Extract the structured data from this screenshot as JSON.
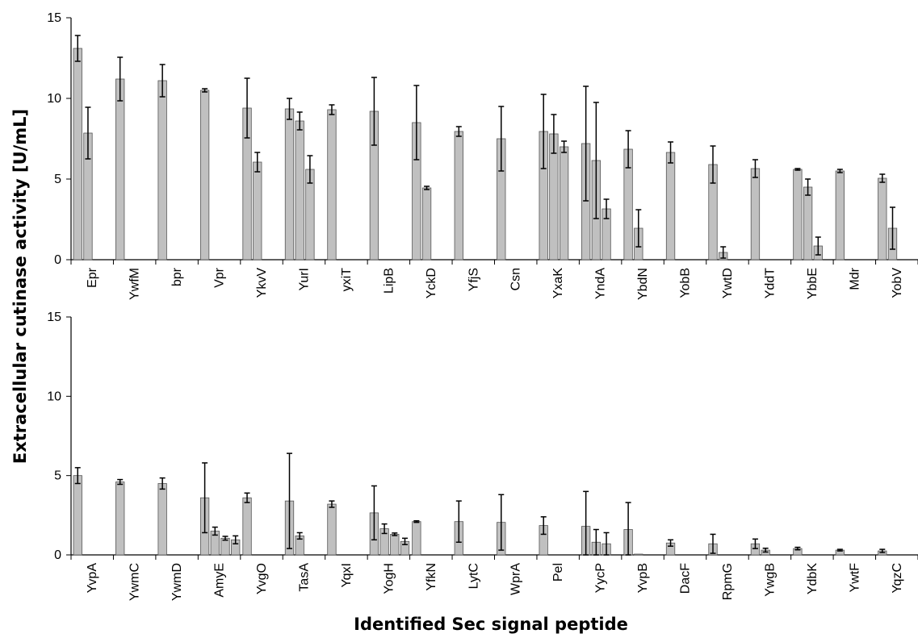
{
  "chart_data": {
    "type": "bar",
    "ylabel": "Extracellular cutinase activity   [U/mL]",
    "xlabel": "Identified Sec signal peptide",
    "bar_color": "#c0c0c0",
    "bar_edge_color": "#555555",
    "grid": false,
    "error_bars": true,
    "panels": [
      {
        "name": "top",
        "ylim": [
          0,
          15
        ],
        "yticks": [
          "0",
          "5",
          "10",
          "15"
        ],
        "ytick_values": [
          0,
          5,
          10,
          15
        ],
        "groups": [
          {
            "label": "Epr",
            "bars": [
              {
                "value": 13.1,
                "error": 0.8
              },
              {
                "value": 7.85,
                "error": 1.6
              }
            ]
          },
          {
            "label": "YwfM",
            "bars": [
              {
                "value": 11.2,
                "error": 1.35
              }
            ]
          },
          {
            "label": "bpr",
            "bars": [
              {
                "value": 11.1,
                "error": 1.0
              }
            ]
          },
          {
            "label": "Vpr",
            "bars": [
              {
                "value": 10.5,
                "error": 0.1
              }
            ]
          },
          {
            "label": "YkvV",
            "bars": [
              {
                "value": 9.4,
                "error": 1.85
              },
              {
                "value": 6.05,
                "error": 0.6
              }
            ]
          },
          {
            "label": "YurI",
            "bars": [
              {
                "value": 9.35,
                "error": 0.65
              },
              {
                "value": 8.6,
                "error": 0.55
              },
              {
                "value": 5.6,
                "error": 0.85
              }
            ]
          },
          {
            "label": "yxiT",
            "bars": [
              {
                "value": 9.3,
                "error": 0.3
              }
            ]
          },
          {
            "label": "LipB",
            "bars": [
              {
                "value": 9.2,
                "error": 2.1
              }
            ]
          },
          {
            "label": "YckD",
            "bars": [
              {
                "value": 8.5,
                "error": 2.3
              },
              {
                "value": 4.45,
                "error": 0.1
              }
            ]
          },
          {
            "label": "YfjS",
            "bars": [
              {
                "value": 7.95,
                "error": 0.3
              }
            ]
          },
          {
            "label": "Csn",
            "bars": [
              {
                "value": 7.5,
                "error": 2.0
              }
            ]
          },
          {
            "label": "YxaK",
            "bars": [
              {
                "value": 7.95,
                "error": 2.3
              },
              {
                "value": 7.8,
                "error": 1.2
              },
              {
                "value": 7.0,
                "error": 0.35
              }
            ]
          },
          {
            "label": "YndA",
            "bars": [
              {
                "value": 7.2,
                "error": 3.55
              },
              {
                "value": 6.15,
                "error": 3.6
              },
              {
                "value": 3.15,
                "error": 0.6
              }
            ]
          },
          {
            "label": "YbdN",
            "bars": [
              {
                "value": 6.85,
                "error": 1.15
              },
              {
                "value": 1.95,
                "error": 1.15
              }
            ]
          },
          {
            "label": "YobB",
            "bars": [
              {
                "value": 6.65,
                "error": 0.65
              }
            ]
          },
          {
            "label": "YwtD",
            "bars": [
              {
                "value": 5.9,
                "error": 1.15
              },
              {
                "value": 0.45,
                "error": 0.35
              }
            ]
          },
          {
            "label": "YddT",
            "bars": [
              {
                "value": 5.65,
                "error": 0.55
              }
            ]
          },
          {
            "label": "YbbE",
            "bars": [
              {
                "value": 5.6,
                "error": 0.05
              },
              {
                "value": 4.5,
                "error": 0.5
              },
              {
                "value": 0.85,
                "error": 0.55
              }
            ]
          },
          {
            "label": "Mdr",
            "bars": [
              {
                "value": 5.5,
                "error": 0.1
              }
            ]
          },
          {
            "label": "YobV",
            "bars": [
              {
                "value": 5.05,
                "error": 0.25
              },
              {
                "value": 1.95,
                "error": 1.3
              }
            ]
          }
        ]
      },
      {
        "name": "bottom",
        "ylim": [
          0,
          15
        ],
        "yticks": [
          "0",
          "5",
          "10",
          "15"
        ],
        "ytick_values": [
          0,
          5,
          10,
          15
        ],
        "groups": [
          {
            "label": "YvpA",
            "bars": [
              {
                "value": 5.0,
                "error": 0.5
              }
            ]
          },
          {
            "label": "YwmC",
            "bars": [
              {
                "value": 4.6,
                "error": 0.15
              }
            ]
          },
          {
            "label": "YwmD",
            "bars": [
              {
                "value": 4.5,
                "error": 0.35
              }
            ]
          },
          {
            "label": "AmyE",
            "bars": [
              {
                "value": 3.6,
                "error": 2.2
              },
              {
                "value": 1.5,
                "error": 0.25
              },
              {
                "value": 1.05,
                "error": 0.12
              },
              {
                "value": 0.95,
                "error": 0.25
              }
            ]
          },
          {
            "label": "YvgO",
            "bars": [
              {
                "value": 3.6,
                "error": 0.3
              }
            ]
          },
          {
            "label": "TasA",
            "bars": [
              {
                "value": 3.4,
                "error": 3.0
              },
              {
                "value": 1.2,
                "error": 0.2
              }
            ]
          },
          {
            "label": "YqxI",
            "bars": [
              {
                "value": 3.2,
                "error": 0.2
              }
            ]
          },
          {
            "label": "YogH",
            "bars": [
              {
                "value": 2.65,
                "error": 1.7
              },
              {
                "value": 1.65,
                "error": 0.3
              },
              {
                "value": 1.3,
                "error": 0.08
              },
              {
                "value": 0.85,
                "error": 0.2
              }
            ]
          },
          {
            "label": "YfkN",
            "bars": [
              {
                "value": 2.1,
                "error": 0.05
              }
            ]
          },
          {
            "label": "LytC",
            "bars": [
              {
                "value": 2.1,
                "error": 1.3
              }
            ]
          },
          {
            "label": "WprA",
            "bars": [
              {
                "value": 2.05,
                "error": 1.75
              }
            ]
          },
          {
            "label": "Pel",
            "bars": [
              {
                "value": 1.85,
                "error": 0.55
              }
            ]
          },
          {
            "label": "YycP",
            "bars": [
              {
                "value": 1.8,
                "error": 2.2
              },
              {
                "value": 0.8,
                "error": 0.8
              },
              {
                "value": 0.7,
                "error": 0.7
              }
            ]
          },
          {
            "label": "YvpB",
            "bars": [
              {
                "value": 1.6,
                "error": 1.7
              },
              {
                "value": 0.05,
                "error": 0.0
              }
            ]
          },
          {
            "label": "DacF",
            "bars": [
              {
                "value": 0.75,
                "error": 0.2
              }
            ]
          },
          {
            "label": "RpmG",
            "bars": [
              {
                "value": 0.7,
                "error": 0.6
              }
            ]
          },
          {
            "label": "YwgB",
            "bars": [
              {
                "value": 0.7,
                "error": 0.3
              },
              {
                "value": 0.3,
                "error": 0.12
              }
            ]
          },
          {
            "label": "YdbK",
            "bars": [
              {
                "value": 0.4,
                "error": 0.08
              }
            ]
          },
          {
            "label": "YwtF",
            "bars": [
              {
                "value": 0.3,
                "error": 0.05
              }
            ]
          },
          {
            "label": "YqzC",
            "bars": [
              {
                "value": 0.25,
                "error": 0.1
              }
            ]
          }
        ]
      }
    ]
  }
}
